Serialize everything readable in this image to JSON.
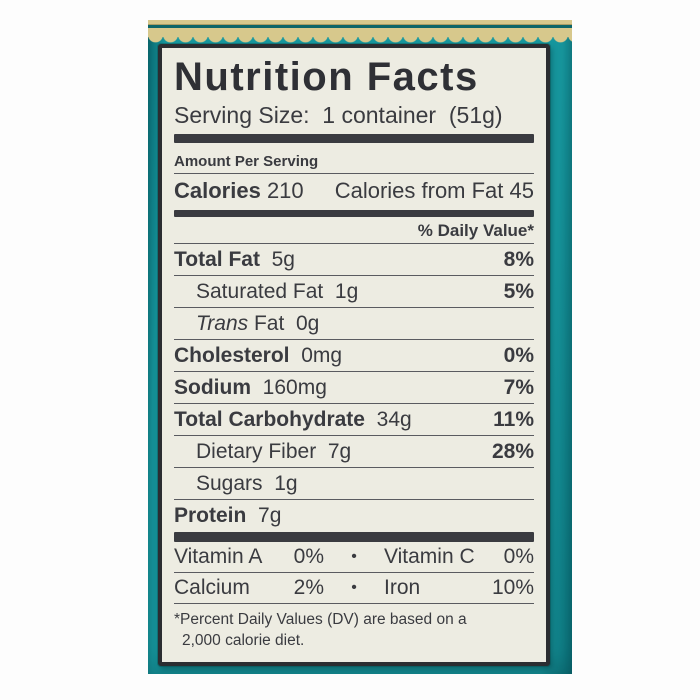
{
  "label": {
    "title": "Nutrition Facts",
    "serving_size": "Serving Size:  1 container  (51g)",
    "amount_per_serving": "Amount Per Serving",
    "calories_label": "Calories",
    "calories_value": " 210",
    "calories_from_fat": "Calories from Fat 45",
    "daily_value_header": "% Daily Value*",
    "rows": [
      {
        "bold": "Total Fat",
        "rest": "  5g",
        "pct": "8%"
      },
      {
        "bold": "",
        "rest": "Saturated Fat  1g",
        "pct": "5%"
      },
      {
        "italic": "Trans",
        "bold": "",
        "rest": " Fat  0g",
        "pct": ""
      },
      {
        "bold": "Cholesterol",
        "rest": "  0mg",
        "pct": "0%"
      },
      {
        "bold": "Sodium",
        "rest": "  160mg",
        "pct": "7%"
      },
      {
        "bold": "Total Carbohydrate",
        "rest": "  34g",
        "pct": "11%"
      },
      {
        "bold": "",
        "rest": "Dietary Fiber  7g",
        "pct": "28%"
      },
      {
        "bold": "",
        "rest": "Sugars  1g",
        "pct": ""
      },
      {
        "bold": "Protein",
        "rest": "  7g",
        "pct": ""
      }
    ],
    "bullet": "•",
    "vitamins": [
      {
        "name": "Vitamin A",
        "value": "0%",
        "name2": "Vitamin C",
        "value2": "0%"
      },
      {
        "name": "Calcium",
        "value": "2%",
        "name2": "Iron",
        "value2": "10%"
      }
    ],
    "footnote_line1": "*Percent Daily Values (DV) are based on a",
    "footnote_line2": "2,000 calorie diet."
  },
  "colors": {
    "teal": "#17989f",
    "teal_dark": "#0b7078",
    "teal_deep": "#0d6568",
    "gold": "#d7c88c",
    "label_bg": "#edece2",
    "label_border": "#2b2d31",
    "ink": "#3a3b40",
    "rule": "#5a5b60",
    "page_bg": "#fdfdfd"
  }
}
